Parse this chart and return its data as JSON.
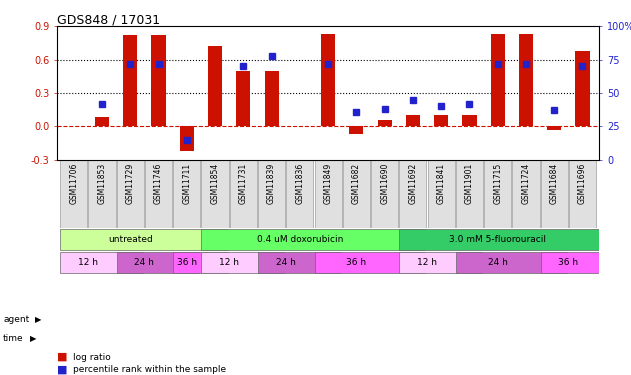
{
  "title": "GDS848 / 17031",
  "samples": [
    "GSM11706",
    "GSM11853",
    "GSM11729",
    "GSM11746",
    "GSM11711",
    "GSM11854",
    "GSM11731",
    "GSM11839",
    "GSM11836",
    "GSM11849",
    "GSM11682",
    "GSM11690",
    "GSM11692",
    "GSM11841",
    "GSM11901",
    "GSM11715",
    "GSM11724",
    "GSM11684",
    "GSM11696"
  ],
  "log_ratio": [
    0.0,
    0.08,
    0.82,
    0.82,
    -0.22,
    0.72,
    0.5,
    0.5,
    0.0,
    0.83,
    -0.07,
    0.06,
    0.1,
    0.1,
    0.1,
    0.83,
    0.83,
    -0.03,
    0.68
  ],
  "percentile": [
    null,
    42,
    72,
    72,
    15,
    null,
    70,
    78,
    null,
    72,
    36,
    38,
    45,
    40,
    42,
    72,
    72,
    37,
    70
  ],
  "ylim_left": [
    -0.3,
    0.9
  ],
  "ylim_right": [
    0,
    100
  ],
  "yticks_left": [
    -0.3,
    0.0,
    0.3,
    0.6,
    0.9
  ],
  "yticks_right": [
    0,
    25,
    50,
    75,
    100
  ],
  "hlines": [
    0.6,
    0.3
  ],
  "bar_color": "#cc1100",
  "dot_color": "#2222cc",
  "zero_line_color": "#cc1100",
  "agent_groups": [
    {
      "label": "untreated",
      "start": 0,
      "end": 5,
      "color": "#ccff99"
    },
    {
      "label": "0.4 uM doxorubicin",
      "start": 5,
      "end": 12,
      "color": "#66ff66"
    },
    {
      "label": "3.0 mM 5-fluorouracil",
      "start": 12,
      "end": 19,
      "color": "#33cc66"
    }
  ],
  "time_groups": [
    {
      "label": "12 h",
      "start": 0,
      "end": 2,
      "color": "#ffccff"
    },
    {
      "label": "24 h",
      "start": 2,
      "end": 4,
      "color": "#cc66cc"
    },
    {
      "label": "36 h",
      "start": 4,
      "end": 5,
      "color": "#ff66ff"
    },
    {
      "label": "12 h",
      "start": 5,
      "end": 7,
      "color": "#ffccff"
    },
    {
      "label": "24 h",
      "start": 7,
      "end": 9,
      "color": "#cc66cc"
    },
    {
      "label": "36 h",
      "start": 9,
      "end": 12,
      "color": "#ff66ff"
    },
    {
      "label": "12 h",
      "start": 12,
      "end": 14,
      "color": "#ffccff"
    },
    {
      "label": "24 h",
      "start": 14,
      "end": 17,
      "color": "#cc66cc"
    },
    {
      "label": "36 h",
      "start": 17,
      "end": 19,
      "color": "#ff66ff"
    }
  ],
  "legend_items": [
    {
      "label": "log ratio",
      "color": "#cc1100"
    },
    {
      "label": "percentile rank within the sample",
      "color": "#2222cc"
    }
  ]
}
